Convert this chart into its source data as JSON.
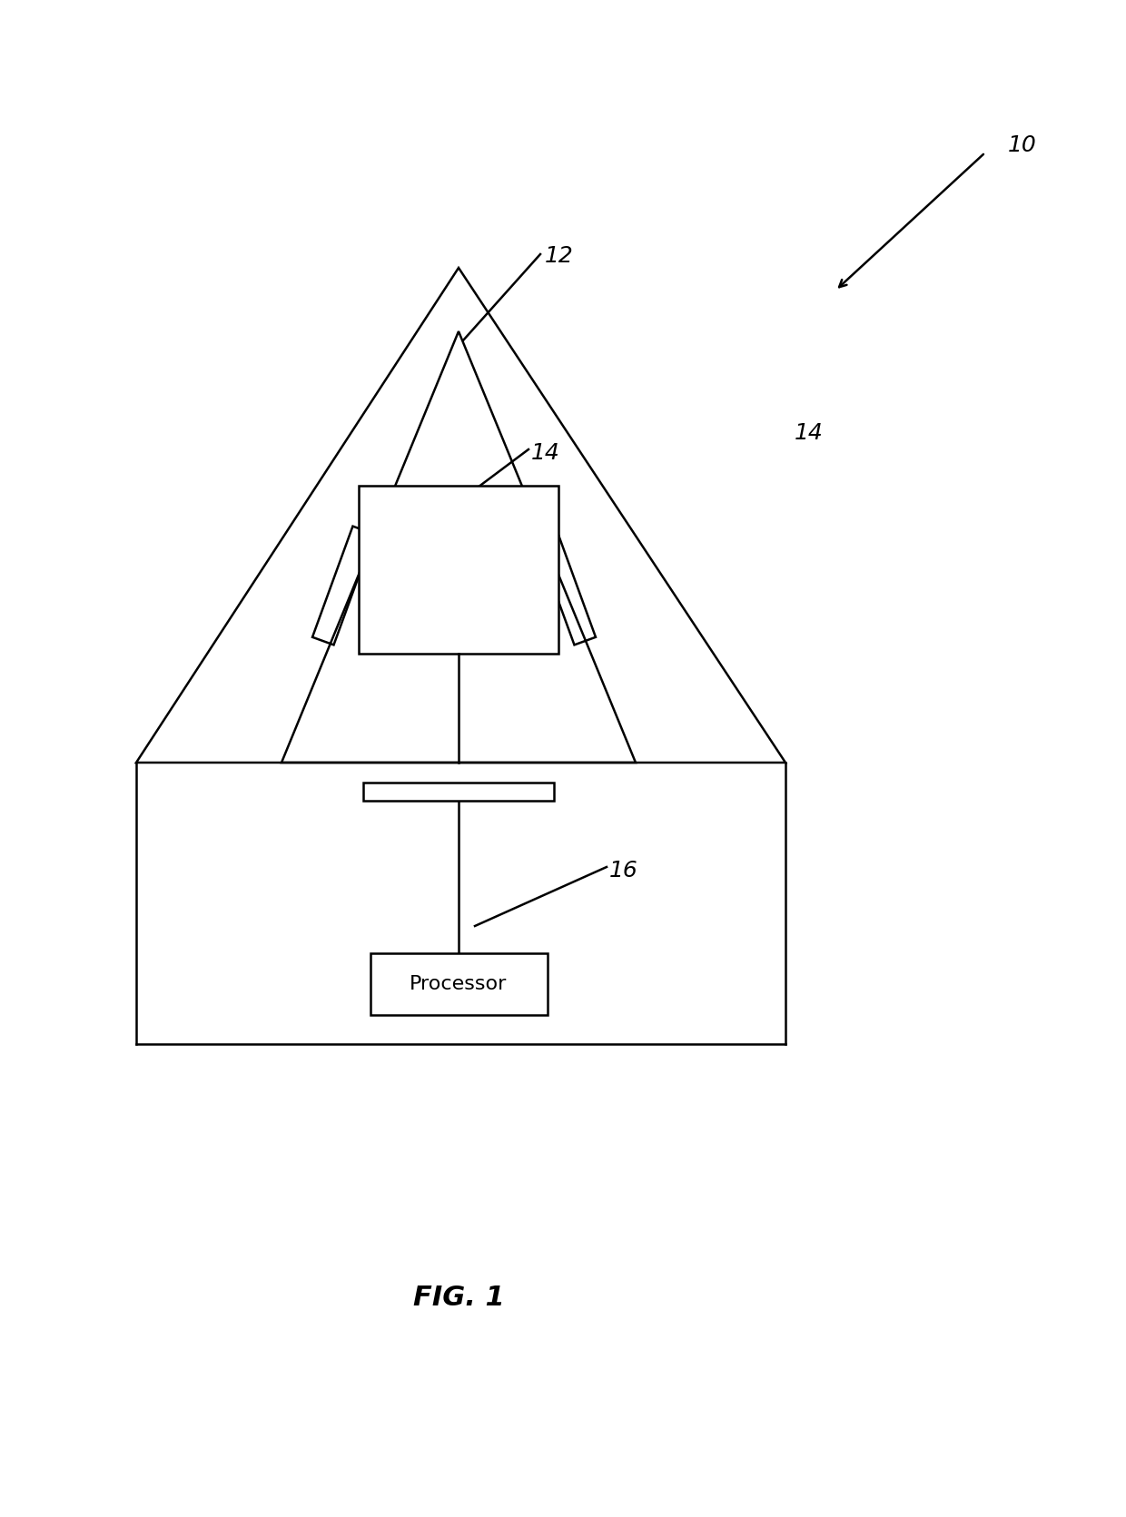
{
  "bg_color": "#ffffff",
  "line_color": "#000000",
  "fig_width": 12.4,
  "fig_height": 16.71,
  "title_text": "FIG. 1",
  "label_10": "10",
  "label_12": "12",
  "label_14a": "14",
  "label_14b": "14",
  "label_16": "16",
  "font_size_labels": 18,
  "font_size_title": 22,
  "lw": 1.8
}
